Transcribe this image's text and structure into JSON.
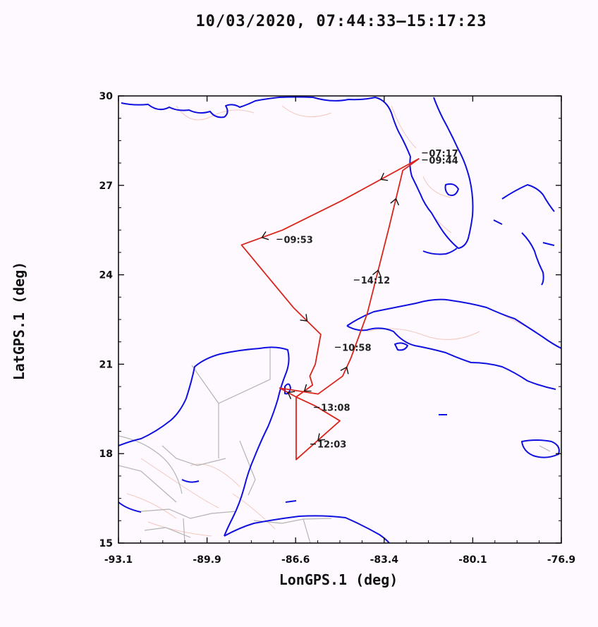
{
  "title": "10/03/2020, 07:44:33–15:17:23",
  "colors": {
    "track": "#d9251c",
    "coast": "#1010e0",
    "borders": "#b4b4b4",
    "rivers": "#f3c8c0",
    "background": "#fdf9fe"
  },
  "chart_data": {
    "type": "line",
    "xlabel": "LonGPS.1 (deg)",
    "ylabel": "LatGPS.1 (deg)",
    "xlim": [
      -93.1,
      -76.9
    ],
    "ylim": [
      15,
      30
    ],
    "xticks": [
      "-93.1",
      "-89.9",
      "-86.6",
      "-83.4",
      "-80.1",
      "-76.9"
    ],
    "yticks": [
      "15",
      "18",
      "21",
      "24",
      "27",
      "30"
    ],
    "grid": false,
    "series": [
      {
        "x": [
          -82.1,
          -84.9,
          -87.1,
          -88.6,
          -86.7,
          -85.7,
          -85.9,
          -86.1,
          -86.0,
          -86.6,
          -85.9,
          -85.0,
          -86.6,
          -86.6,
          -87.2,
          -85.8,
          -84.9,
          -84.6,
          -84.0,
          -83.2,
          -82.7,
          -82.1
        ],
        "y": [
          27.9,
          26.5,
          25.5,
          25.0,
          22.9,
          22.0,
          21.0,
          20.6,
          20.3,
          19.9,
          19.6,
          19.1,
          17.8,
          19.9,
          20.2,
          20.0,
          20.6,
          21.2,
          22.7,
          25.6,
          27.5,
          27.9
        ]
      }
    ],
    "annotations": [
      "07:17",
      "09:44",
      "09:53",
      "10:58",
      "12:03",
      "13:08",
      "14:12"
    ]
  }
}
